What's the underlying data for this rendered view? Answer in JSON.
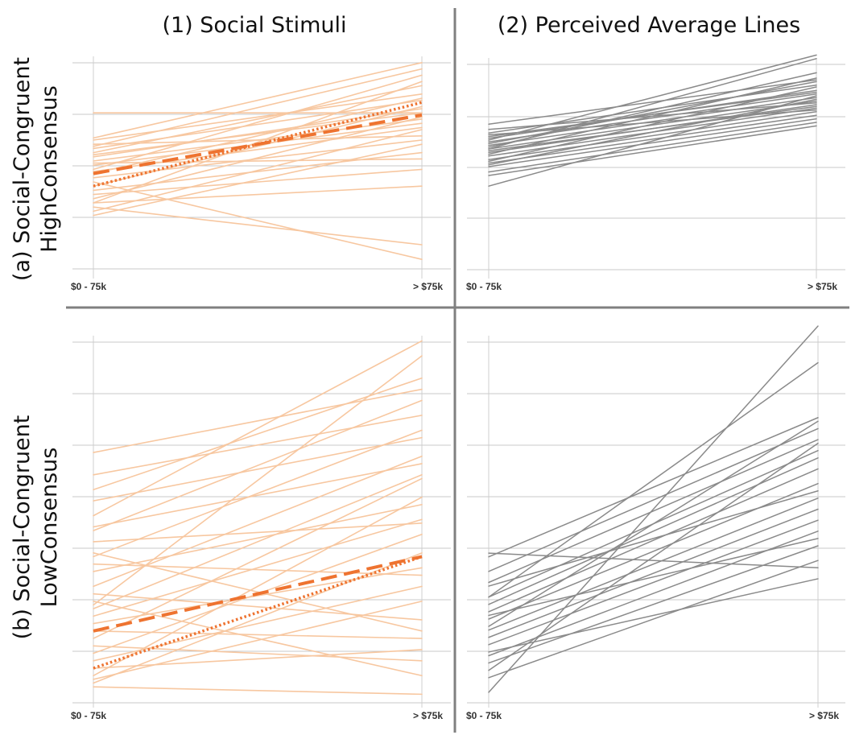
{
  "figure": {
    "column_titles": [
      "(1) Social Stimuli",
      "(2) Perceived Average Lines"
    ],
    "row_titles": [
      {
        "line1": "(a) Social-Congruent",
        "line2": "HighConsensus"
      },
      {
        "line1": "(b) Social-Congruent",
        "line2": "LowConsensus"
      }
    ]
  },
  "colors": {
    "stimulus": "#f7c7a0",
    "average_mean": "#ee7330",
    "average_trend": "#ee7330",
    "perceived": "#8a8a8a",
    "grid": "#c8c8c8"
  },
  "chart_data": [
    {
      "type": "line",
      "panel": "a1",
      "categories": [
        "$0 - 75k",
        "> $75k"
      ],
      "ylim": [
        0,
        10
      ],
      "grid": true,
      "style": "stimulus",
      "series": [
        {
          "values": [
            6.1,
            9.7
          ]
        },
        {
          "values": [
            5.7,
            9.4
          ]
        },
        {
          "values": [
            5.4,
            8.6
          ]
        },
        {
          "values": [
            6.0,
            8.2
          ]
        },
        {
          "values": [
            5.2,
            7.5
          ]
        },
        {
          "values": [
            5.0,
            7.0
          ]
        },
        {
          "values": [
            4.5,
            6.6
          ]
        },
        {
          "values": [
            4.2,
            6.0
          ]
        },
        {
          "values": [
            3.6,
            5.4
          ]
        },
        {
          "values": [
            3.4,
            4.6
          ]
        },
        {
          "values": [
            3.0,
            3.8
          ]
        },
        {
          "values": [
            2.8,
            1.0
          ]
        },
        {
          "values": [
            4.0,
            0.3
          ]
        },
        {
          "values": [
            4.8,
            6.8
          ]
        },
        {
          "values": [
            5.3,
            7.3
          ]
        },
        {
          "values": [
            5.6,
            7.9
          ]
        },
        {
          "values": [
            7.3,
            7.3
          ]
        },
        {
          "values": [
            4.4,
            8.0
          ]
        },
        {
          "values": [
            3.8,
            7.6
          ]
        },
        {
          "values": [
            3.2,
            7.1
          ]
        },
        {
          "values": [
            2.6,
            6.5
          ]
        },
        {
          "values": [
            2.4,
            5.8
          ]
        },
        {
          "values": [
            4.6,
            9.1
          ]
        },
        {
          "values": [
            3.0,
            8.8
          ]
        },
        {
          "values": [
            5.8,
            6.2
          ]
        },
        {
          "values": [
            4.9,
            5.1
          ]
        }
      ],
      "mean_line": {
        "values": [
          4.4,
          7.2
        ]
      },
      "trend_line": {
        "values": [
          3.8,
          7.8
        ]
      }
    },
    {
      "type": "line",
      "panel": "a2",
      "categories": [
        "$0 - 75k",
        "> $75k"
      ],
      "ylim": [
        0,
        10
      ],
      "grid": true,
      "style": "perceived",
      "series": [
        {
          "values": [
            5.0,
            9.8
          ]
        },
        {
          "values": [
            4.5,
            9.6
          ]
        },
        {
          "values": [
            5.9,
            8.4
          ]
        },
        {
          "values": [
            5.4,
            8.1
          ]
        },
        {
          "values": [
            5.1,
            7.8
          ]
        },
        {
          "values": [
            4.9,
            7.6
          ]
        },
        {
          "values": [
            4.7,
            7.4
          ]
        },
        {
          "values": [
            4.5,
            7.2
          ]
        },
        {
          "values": [
            4.3,
            7.0
          ]
        },
        {
          "values": [
            4.1,
            6.8
          ]
        },
        {
          "values": [
            3.9,
            6.6
          ]
        },
        {
          "values": [
            3.7,
            6.4
          ]
        },
        {
          "values": [
            3.5,
            6.2
          ]
        },
        {
          "values": [
            3.2,
            6.0
          ]
        },
        {
          "values": [
            3.0,
            5.8
          ]
        },
        {
          "values": [
            2.4,
            7.5
          ]
        },
        {
          "values": [
            5.2,
            7.7
          ]
        },
        {
          "values": [
            5.6,
            7.1
          ]
        },
        {
          "values": [
            4.6,
            8.8
          ]
        },
        {
          "values": [
            4.2,
            8.5
          ]
        },
        {
          "values": [
            3.8,
            8.0
          ]
        },
        {
          "values": [
            4.4,
            6.9
          ]
        },
        {
          "values": [
            3.6,
            7.3
          ]
        },
        {
          "values": [
            5.3,
            6.7
          ]
        },
        {
          "values": [
            4.8,
            8.3
          ]
        }
      ]
    },
    {
      "type": "line",
      "panel": "b1",
      "categories": [
        "$0 - 75k",
        "> $75k"
      ],
      "ylim": [
        0,
        10
      ],
      "grid": true,
      "style": "stimulus",
      "series": [
        {
          "values": [
            4.9,
            9.6
          ]
        },
        {
          "values": [
            2.5,
            9.2
          ]
        },
        {
          "values": [
            5.6,
            8.6
          ]
        },
        {
          "values": [
            6.6,
            8.3
          ]
        },
        {
          "values": [
            6.0,
            7.6
          ]
        },
        {
          "values": [
            4.5,
            8.0
          ]
        },
        {
          "values": [
            3.8,
            7.2
          ]
        },
        {
          "values": [
            3.0,
            6.5
          ]
        },
        {
          "values": [
            2.4,
            6.0
          ]
        },
        {
          "values": [
            1.6,
            5.9
          ]
        },
        {
          "values": [
            0.6,
            5.4
          ]
        },
        {
          "values": [
            3.4,
            5.2
          ]
        },
        {
          "values": [
            2.2,
            4.8
          ]
        },
        {
          "values": [
            4.2,
            4.7
          ]
        },
        {
          "values": [
            1.2,
            4.4
          ]
        },
        {
          "values": [
            0.4,
            3.9
          ]
        },
        {
          "values": [
            2.0,
            3.5
          ]
        },
        {
          "values": [
            3.6,
            3.3
          ]
        },
        {
          "values": [
            1.0,
            3.0
          ]
        },
        {
          "values": [
            0.5,
            2.6
          ]
        },
        {
          "values": [
            2.8,
            2.1
          ]
        },
        {
          "values": [
            1.8,
            1.6
          ]
        },
        {
          "values": [
            0.8,
            1.3
          ]
        },
        {
          "values": [
            1.4,
            1.0
          ]
        },
        {
          "values": [
            2.6,
            0.6
          ]
        },
        {
          "values": [
            0.3,
            0.1
          ]
        },
        {
          "values": [
            3.9,
            1.8
          ]
        },
        {
          "values": [
            4.6,
            6.3
          ]
        },
        {
          "values": [
            5.3,
            7.0
          ]
        }
      ],
      "mean_line": {
        "values": [
          1.8,
          3.8
        ]
      },
      "trend_line": {
        "values": [
          0.8,
          3.8
        ]
      }
    },
    {
      "type": "line",
      "panel": "b2",
      "categories": [
        "$0 - 75k",
        "> $75k"
      ],
      "ylim": [
        0,
        10
      ],
      "grid": true,
      "style": "perceived",
      "series": [
        {
          "values": [
            0.0,
            10.0
          ]
        },
        {
          "values": [
            2.6,
            9.0
          ]
        },
        {
          "values": [
            3.7,
            7.5
          ]
        },
        {
          "values": [
            3.3,
            7.2
          ]
        },
        {
          "values": [
            3.0,
            6.9
          ]
        },
        {
          "values": [
            2.6,
            6.6
          ]
        },
        {
          "values": [
            2.4,
            6.4
          ]
        },
        {
          "values": [
            2.2,
            6.1
          ]
        },
        {
          "values": [
            2.0,
            5.7
          ]
        },
        {
          "values": [
            1.7,
            5.3
          ]
        },
        {
          "values": [
            1.5,
            5.0
          ]
        },
        {
          "values": [
            1.3,
            4.7
          ]
        },
        {
          "values": [
            1.0,
            4.4
          ]
        },
        {
          "values": [
            0.8,
            4.0
          ]
        },
        {
          "values": [
            0.4,
            3.6
          ]
        },
        {
          "values": [
            3.8,
            3.4
          ]
        },
        {
          "values": [
            0.6,
            6.8
          ]
        },
        {
          "values": [
            1.8,
            7.4
          ]
        },
        {
          "values": [
            1.1,
            3.1
          ]
        },
        {
          "values": [
            2.9,
            5.5
          ]
        },
        {
          "values": [
            2.1,
            4.2
          ]
        }
      ]
    }
  ]
}
